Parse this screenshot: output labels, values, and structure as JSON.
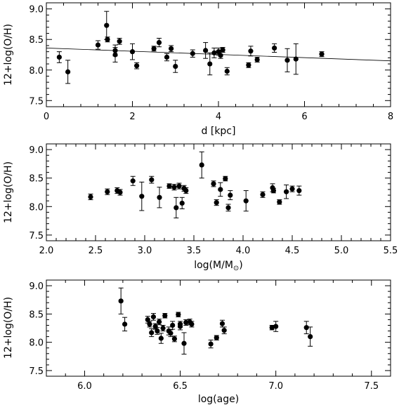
{
  "chart_data": [
    {
      "type": "scatter",
      "xlabel": "d [kpc]",
      "ylabel": "12+log(O/H)",
      "xlim": [
        0,
        8
      ],
      "ylim": [
        7.4,
        9.1
      ],
      "xticks": [
        "0",
        "2",
        "4",
        "6",
        "8"
      ],
      "xtick_values": [
        0,
        2,
        4,
        6,
        8
      ],
      "yticks": [
        "7.5",
        "8.0",
        "8.5",
        "9.0"
      ],
      "ytick_values": [
        7.5,
        8.0,
        8.5,
        9.0
      ],
      "fit_line": {
        "x": [
          0,
          8
        ],
        "y": [
          8.36,
          8.15
        ]
      },
      "points": [
        {
          "x": 0.3,
          "y": 8.21,
          "err": 0.09
        },
        {
          "x": 0.5,
          "y": 7.97,
          "err": 0.19
        },
        {
          "x": 1.2,
          "y": 8.41,
          "err": 0.07
        },
        {
          "x": 1.4,
          "y": 8.73,
          "err": 0.23
        },
        {
          "x": 1.42,
          "y": 8.5,
          "err": 0.04
        },
        {
          "x": 1.6,
          "y": 8.32,
          "err": 0.09
        },
        {
          "x": 1.6,
          "y": 8.25,
          "err": 0.12
        },
        {
          "x": 1.7,
          "y": 8.47,
          "err": 0.05
        },
        {
          "x": 2.0,
          "y": 8.3,
          "err": 0.13
        },
        {
          "x": 2.1,
          "y": 8.07,
          "err": 0.05
        },
        {
          "x": 2.5,
          "y": 8.35,
          "err": 0.04
        },
        {
          "x": 2.62,
          "y": 8.45,
          "err": 0.07
        },
        {
          "x": 2.8,
          "y": 8.21,
          "err": 0.06
        },
        {
          "x": 2.9,
          "y": 8.35,
          "err": 0.05
        },
        {
          "x": 3.0,
          "y": 8.06,
          "err": 0.1
        },
        {
          "x": 3.4,
          "y": 8.27,
          "err": 0.06
        },
        {
          "x": 3.7,
          "y": 8.32,
          "err": 0.13
        },
        {
          "x": 3.8,
          "y": 8.1,
          "err": 0.18
        },
        {
          "x": 3.9,
          "y": 8.28,
          "err": 0.08
        },
        {
          "x": 4.0,
          "y": 8.3,
          "err": 0.06
        },
        {
          "x": 4.05,
          "y": 8.24,
          "err": 0.05
        },
        {
          "x": 4.1,
          "y": 8.33,
          "err": 0.04
        },
        {
          "x": 4.2,
          "y": 7.98,
          "err": 0.06
        },
        {
          "x": 4.7,
          "y": 8.08,
          "err": 0.04
        },
        {
          "x": 4.75,
          "y": 8.31,
          "err": 0.08
        },
        {
          "x": 4.9,
          "y": 8.17,
          "err": 0.04
        },
        {
          "x": 5.3,
          "y": 8.36,
          "err": 0.07
        },
        {
          "x": 5.6,
          "y": 8.16,
          "err": 0.19
        },
        {
          "x": 5.8,
          "y": 8.18,
          "err": 0.25
        },
        {
          "x": 6.4,
          "y": 8.26,
          "err": 0.04
        }
      ]
    },
    {
      "type": "scatter",
      "xlabel_parts": [
        "log(M/M",
        "⊙",
        ")"
      ],
      "ylabel": "12+log(O/H)",
      "xlim": [
        2.0,
        5.5
      ],
      "ylim": [
        7.4,
        9.1
      ],
      "xticks": [
        "2.0",
        "2.5",
        "3.0",
        "3.5",
        "4.0",
        "4.5",
        "5.0",
        "5.5"
      ],
      "xtick_values": [
        2.0,
        2.5,
        3.0,
        3.5,
        4.0,
        4.5,
        5.0,
        5.5
      ],
      "yticks": [
        "7.5",
        "8.0",
        "8.5",
        "9.0"
      ],
      "ytick_values": [
        7.5,
        8.0,
        8.5,
        9.0
      ],
      "points": [
        {
          "x": 2.45,
          "y": 8.17,
          "err": 0.05
        },
        {
          "x": 2.62,
          "y": 8.26,
          "err": 0.05
        },
        {
          "x": 2.72,
          "y": 8.28,
          "err": 0.05
        },
        {
          "x": 2.75,
          "y": 8.25,
          "err": 0.05
        },
        {
          "x": 2.88,
          "y": 8.45,
          "err": 0.08
        },
        {
          "x": 2.97,
          "y": 8.18,
          "err": 0.25
        },
        {
          "x": 3.07,
          "y": 8.47,
          "err": 0.06
        },
        {
          "x": 3.15,
          "y": 8.16,
          "err": 0.18
        },
        {
          "x": 3.25,
          "y": 8.36,
          "err": 0.04
        },
        {
          "x": 3.3,
          "y": 8.34,
          "err": 0.05
        },
        {
          "x": 3.32,
          "y": 7.98,
          "err": 0.18
        },
        {
          "x": 3.35,
          "y": 8.36,
          "err": 0.05
        },
        {
          "x": 3.38,
          "y": 8.06,
          "err": 0.1
        },
        {
          "x": 3.4,
          "y": 8.32,
          "err": 0.05
        },
        {
          "x": 3.42,
          "y": 8.28,
          "err": 0.05
        },
        {
          "x": 3.58,
          "y": 8.73,
          "err": 0.23
        },
        {
          "x": 3.7,
          "y": 8.4,
          "err": 0.05
        },
        {
          "x": 3.73,
          "y": 8.07,
          "err": 0.05
        },
        {
          "x": 3.77,
          "y": 8.3,
          "err": 0.12
        },
        {
          "x": 3.82,
          "y": 8.49,
          "err": 0.04
        },
        {
          "x": 3.85,
          "y": 7.98,
          "err": 0.06
        },
        {
          "x": 3.87,
          "y": 8.2,
          "err": 0.08
        },
        {
          "x": 4.03,
          "y": 8.1,
          "err": 0.18
        },
        {
          "x": 4.2,
          "y": 8.21,
          "err": 0.05
        },
        {
          "x": 4.3,
          "y": 8.33,
          "err": 0.07
        },
        {
          "x": 4.31,
          "y": 8.28,
          "err": 0.04
        },
        {
          "x": 4.37,
          "y": 8.08,
          "err": 0.04
        },
        {
          "x": 4.44,
          "y": 8.26,
          "err": 0.12
        },
        {
          "x": 4.5,
          "y": 8.31,
          "err": 0.05
        },
        {
          "x": 4.57,
          "y": 8.28,
          "err": 0.08
        }
      ]
    },
    {
      "type": "scatter",
      "xlabel": "log(age)",
      "ylabel": "12+log(O/H)",
      "xlim": [
        5.8,
        7.6
      ],
      "ylim": [
        7.4,
        9.1
      ],
      "xticks": [
        "6.0",
        "6.5",
        "7.0",
        "7.5"
      ],
      "xtick_values": [
        6.0,
        6.5,
        7.0,
        7.5
      ],
      "yticks": [
        "7.5",
        "8.0",
        "8.5",
        "9.0"
      ],
      "ytick_values": [
        7.5,
        8.0,
        8.5,
        9.0
      ],
      "points": [
        {
          "x": 6.19,
          "y": 8.73,
          "err": 0.23
        },
        {
          "x": 6.21,
          "y": 8.32,
          "err": 0.12
        },
        {
          "x": 6.33,
          "y": 8.4,
          "err": 0.06
        },
        {
          "x": 6.34,
          "y": 8.32,
          "err": 0.05
        },
        {
          "x": 6.35,
          "y": 8.17,
          "err": 0.07
        },
        {
          "x": 6.36,
          "y": 8.45,
          "err": 0.06
        },
        {
          "x": 6.37,
          "y": 8.28,
          "err": 0.05
        },
        {
          "x": 6.38,
          "y": 8.2,
          "err": 0.06
        },
        {
          "x": 6.39,
          "y": 8.36,
          "err": 0.05
        },
        {
          "x": 6.4,
          "y": 8.07,
          "err": 0.09
        },
        {
          "x": 6.41,
          "y": 8.25,
          "err": 0.05
        },
        {
          "x": 6.42,
          "y": 8.47,
          "err": 0.04
        },
        {
          "x": 6.44,
          "y": 8.2,
          "err": 0.07
        },
        {
          "x": 6.45,
          "y": 8.16,
          "err": 0.06
        },
        {
          "x": 6.46,
          "y": 8.3,
          "err": 0.07
        },
        {
          "x": 6.47,
          "y": 8.06,
          "err": 0.05
        },
        {
          "x": 6.49,
          "y": 8.49,
          "err": 0.04
        },
        {
          "x": 6.5,
          "y": 8.32,
          "err": 0.05
        },
        {
          "x": 6.5,
          "y": 8.28,
          "err": 0.06
        },
        {
          "x": 6.52,
          "y": 7.98,
          "err": 0.19
        },
        {
          "x": 6.53,
          "y": 8.35,
          "err": 0.05
        },
        {
          "x": 6.55,
          "y": 8.36,
          "err": 0.05
        },
        {
          "x": 6.56,
          "y": 8.32,
          "err": 0.05
        },
        {
          "x": 6.66,
          "y": 7.97,
          "err": 0.07
        },
        {
          "x": 6.69,
          "y": 8.08,
          "err": 0.04
        },
        {
          "x": 6.72,
          "y": 8.33,
          "err": 0.06
        },
        {
          "x": 6.73,
          "y": 8.21,
          "err": 0.06
        },
        {
          "x": 6.98,
          "y": 8.26,
          "err": 0.04
        },
        {
          "x": 7.0,
          "y": 8.28,
          "err": 0.09
        },
        {
          "x": 7.16,
          "y": 8.26,
          "err": 0.11
        },
        {
          "x": 7.18,
          "y": 8.1,
          "err": 0.17
        }
      ]
    }
  ]
}
